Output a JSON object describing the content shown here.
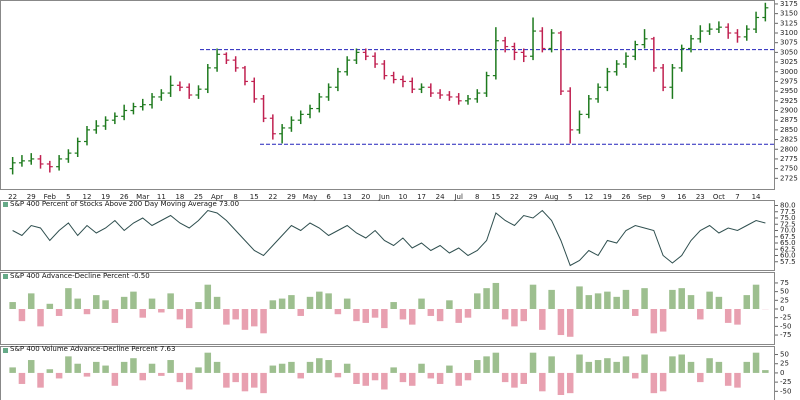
{
  "chart_data": [
    {
      "type": "ohlc",
      "categories": [
        "22",
        null,
        "29",
        null,
        "Feb",
        null,
        "5",
        null,
        "12",
        null,
        "19",
        null,
        "26",
        null,
        "Mar",
        null,
        "11",
        null,
        "18",
        null,
        "25",
        null,
        "Apr",
        null,
        "8",
        null,
        "15",
        null,
        "22",
        null,
        "29",
        null,
        "May",
        null,
        "6",
        null,
        "13",
        null,
        "20",
        null,
        "Jun",
        null,
        "10",
        null,
        "17",
        null,
        "24",
        null,
        "Jul",
        null,
        "8",
        null,
        "15",
        null,
        "22",
        null,
        "29",
        null,
        "Aug",
        null,
        "5",
        null,
        "12",
        null,
        "19",
        null,
        "26",
        null,
        "Sep",
        null,
        "9",
        null,
        "16",
        null,
        "23",
        null,
        "Oct",
        null,
        "7",
        null,
        "14",
        null
      ],
      "open": [
        2750,
        2765,
        2770,
        2775,
        2762,
        2755,
        2775,
        2790,
        2820,
        2850,
        2860,
        2875,
        2885,
        2900,
        2910,
        2915,
        2935,
        2945,
        2965,
        2960,
        2940,
        2955,
        3010,
        3045,
        3030,
        3010,
        2975,
        2930,
        2880,
        2840,
        2855,
        2875,
        2890,
        2905,
        2935,
        2960,
        3000,
        3030,
        3050,
        3040,
        3020,
        2990,
        2980,
        2975,
        2955,
        2960,
        2945,
        2940,
        2935,
        2925,
        2930,
        2945,
        2990,
        3080,
        3065,
        3050,
        3040,
        3105,
        3060,
        3100,
        2950,
        2850,
        2890,
        2930,
        2960,
        3000,
        3020,
        3040,
        3070,
        3085,
        3010,
        2960,
        3010,
        3060,
        3085,
        3105,
        3110,
        3115,
        3100,
        3090,
        3110,
        3140
      ],
      "high": [
        2780,
        2785,
        2790,
        2785,
        2770,
        2785,
        2800,
        2830,
        2860,
        2875,
        2885,
        2895,
        2915,
        2920,
        2930,
        2945,
        2955,
        2990,
        2975,
        2970,
        2965,
        3020,
        3060,
        3050,
        3040,
        3015,
        2985,
        2940,
        2890,
        2865,
        2885,
        2900,
        2915,
        2945,
        2970,
        3010,
        3040,
        3060,
        3060,
        3050,
        3030,
        3000,
        2990,
        2985,
        2970,
        2970,
        2955,
        2950,
        2945,
        2940,
        2955,
        3000,
        3115,
        3090,
        3075,
        3060,
        3140,
        3115,
        3110,
        3105,
        2960,
        2900,
        2940,
        2970,
        3010,
        3030,
        3050,
        3080,
        3110,
        3090,
        3020,
        3020,
        3070,
        3095,
        3120,
        3125,
        3130,
        3125,
        3110,
        3120,
        3155,
        3178
      ],
      "low": [
        2735,
        2755,
        2760,
        2750,
        2740,
        2745,
        2765,
        2780,
        2810,
        2840,
        2850,
        2865,
        2875,
        2890,
        2900,
        2905,
        2925,
        2935,
        2950,
        2930,
        2930,
        2945,
        3000,
        3020,
        3000,
        2965,
        2920,
        2870,
        2825,
        2815,
        2845,
        2865,
        2880,
        2895,
        2925,
        2950,
        2990,
        3020,
        3030,
        3010,
        2980,
        2970,
        2960,
        2945,
        2945,
        2935,
        2930,
        2925,
        2915,
        2915,
        2920,
        2935,
        2980,
        3050,
        3030,
        3025,
        3030,
        3050,
        3050,
        2940,
        2815,
        2840,
        2880,
        2920,
        2950,
        2990,
        3010,
        3030,
        3060,
        3000,
        2950,
        2930,
        3000,
        3050,
        3075,
        3095,
        3100,
        3085,
        3075,
        3080,
        3100,
        3130
      ],
      "close": [
        2765,
        2770,
        2775,
        2762,
        2755,
        2775,
        2790,
        2820,
        2850,
        2860,
        2875,
        2885,
        2900,
        2910,
        2915,
        2935,
        2945,
        2965,
        2960,
        2940,
        2955,
        3010,
        3045,
        3030,
        3010,
        2975,
        2930,
        2880,
        2840,
        2855,
        2875,
        2890,
        2905,
        2935,
        2960,
        3000,
        3030,
        3050,
        3040,
        3020,
        2990,
        2980,
        2975,
        2955,
        2960,
        2945,
        2940,
        2935,
        2925,
        2930,
        2945,
        2990,
        3080,
        3065,
        3050,
        3040,
        3105,
        3060,
        3100,
        2950,
        2850,
        2890,
        2930,
        2960,
        3000,
        3020,
        3040,
        3070,
        3085,
        3010,
        2960,
        3010,
        3060,
        3085,
        3105,
        3110,
        3115,
        3100,
        3090,
        3110,
        3140,
        3165
      ],
      "up_color": "#1e7a1e",
      "down_color": "#c02050",
      "hlines": [
        3057,
        2813
      ],
      "hline_color": "#2222bb",
      "ylim": [
        2700,
        3180
      ],
      "yticks": [
        2725,
        2750,
        2775,
        2800,
        2825,
        2850,
        2875,
        2900,
        2925,
        2950,
        2975,
        3000,
        3025,
        3050,
        3075,
        3100,
        3125,
        3150,
        3175
      ]
    },
    {
      "type": "line",
      "title": "S&P 400 Percent of Stocks Above 200 Day Moving Average 73.00",
      "color": "#2f4f4f",
      "values": [
        70,
        68,
        72,
        71,
        66,
        70,
        73,
        68,
        72,
        69,
        71,
        74,
        70,
        73,
        75,
        72,
        74,
        76,
        73,
        71,
        74,
        78,
        77,
        74,
        70,
        66,
        62,
        60,
        64,
        68,
        72,
        70,
        73,
        71,
        68,
        70,
        72,
        69,
        67,
        70,
        66,
        64,
        67,
        63,
        65,
        62,
        64,
        61,
        63,
        60,
        62,
        66,
        77,
        74,
        72,
        76,
        75,
        78,
        74,
        66,
        56,
        58,
        62,
        60,
        66,
        65,
        70,
        72,
        71,
        70,
        60,
        57,
        60,
        66,
        70,
        72,
        69,
        71,
        70,
        72,
        74,
        73
      ],
      "ylim": [
        55,
        81
      ],
      "yticks": [
        {
          "value": 80,
          "label": "80.0"
        },
        {
          "value": 77.5,
          "label": "77.5"
        },
        {
          "value": 75,
          "label": "75.0"
        },
        {
          "value": 72.5,
          "label": "72.5"
        },
        {
          "value": 70,
          "label": "70.0"
        },
        {
          "value": 67.5,
          "label": "67.5"
        },
        {
          "value": 65,
          "label": "65.0"
        },
        {
          "value": 62.5,
          "label": "62.5"
        },
        {
          "value": 60,
          "label": "60.0"
        },
        {
          "value": 57.5,
          "label": "57.5"
        }
      ]
    },
    {
      "type": "bar",
      "title": "S&P 400 Advance-Decline Percent -0.50",
      "pos_color": "#9dbf8f",
      "neg_color": "#e8a0b0",
      "values": [
        20,
        -35,
        45,
        -50,
        15,
        -20,
        60,
        30,
        -15,
        40,
        25,
        -40,
        35,
        50,
        -25,
        30,
        -10,
        45,
        -30,
        -55,
        20,
        70,
        35,
        -45,
        -30,
        -60,
        -50,
        -70,
        25,
        30,
        40,
        -20,
        35,
        50,
        45,
        -15,
        30,
        -35,
        -40,
        -25,
        -55,
        20,
        -30,
        -45,
        30,
        -20,
        -35,
        25,
        -40,
        -25,
        45,
        60,
        75,
        -30,
        -50,
        -35,
        70,
        -60,
        55,
        -75,
        -80,
        65,
        40,
        45,
        50,
        35,
        55,
        -20,
        60,
        -70,
        -65,
        55,
        60,
        40,
        -30,
        50,
        35,
        -40,
        -45,
        40,
        70,
        -0.5
      ],
      "ylim": [
        -95,
        95
      ],
      "yticks": [
        75,
        50,
        25,
        0,
        -25,
        -50,
        -75
      ]
    },
    {
      "type": "bar",
      "title": "S&P 400 Volume Advance-Decline Percent 7.63",
      "pos_color": "#9dbf8f",
      "neg_color": "#e8a0b0",
      "values": [
        15,
        -30,
        35,
        -40,
        10,
        -15,
        45,
        25,
        -10,
        30,
        20,
        -35,
        30,
        40,
        -20,
        25,
        -8,
        35,
        -25,
        -45,
        15,
        55,
        30,
        -40,
        -25,
        -50,
        -40,
        -55,
        20,
        25,
        30,
        -15,
        30,
        40,
        35,
        -12,
        25,
        -30,
        -35,
        -20,
        -45,
        15,
        -25,
        -35,
        25,
        -15,
        -30,
        20,
        -35,
        -20,
        35,
        45,
        55,
        -25,
        -40,
        -30,
        55,
        -50,
        45,
        -60,
        -55,
        50,
        30,
        35,
        40,
        30,
        45,
        -15,
        50,
        -55,
        -50,
        45,
        50,
        30,
        -25,
        40,
        30,
        -35,
        -40,
        30,
        55,
        7.63
      ],
      "ylim": [
        -60,
        65
      ],
      "yticks": [
        50,
        25,
        0,
        -25,
        -50
      ]
    }
  ]
}
